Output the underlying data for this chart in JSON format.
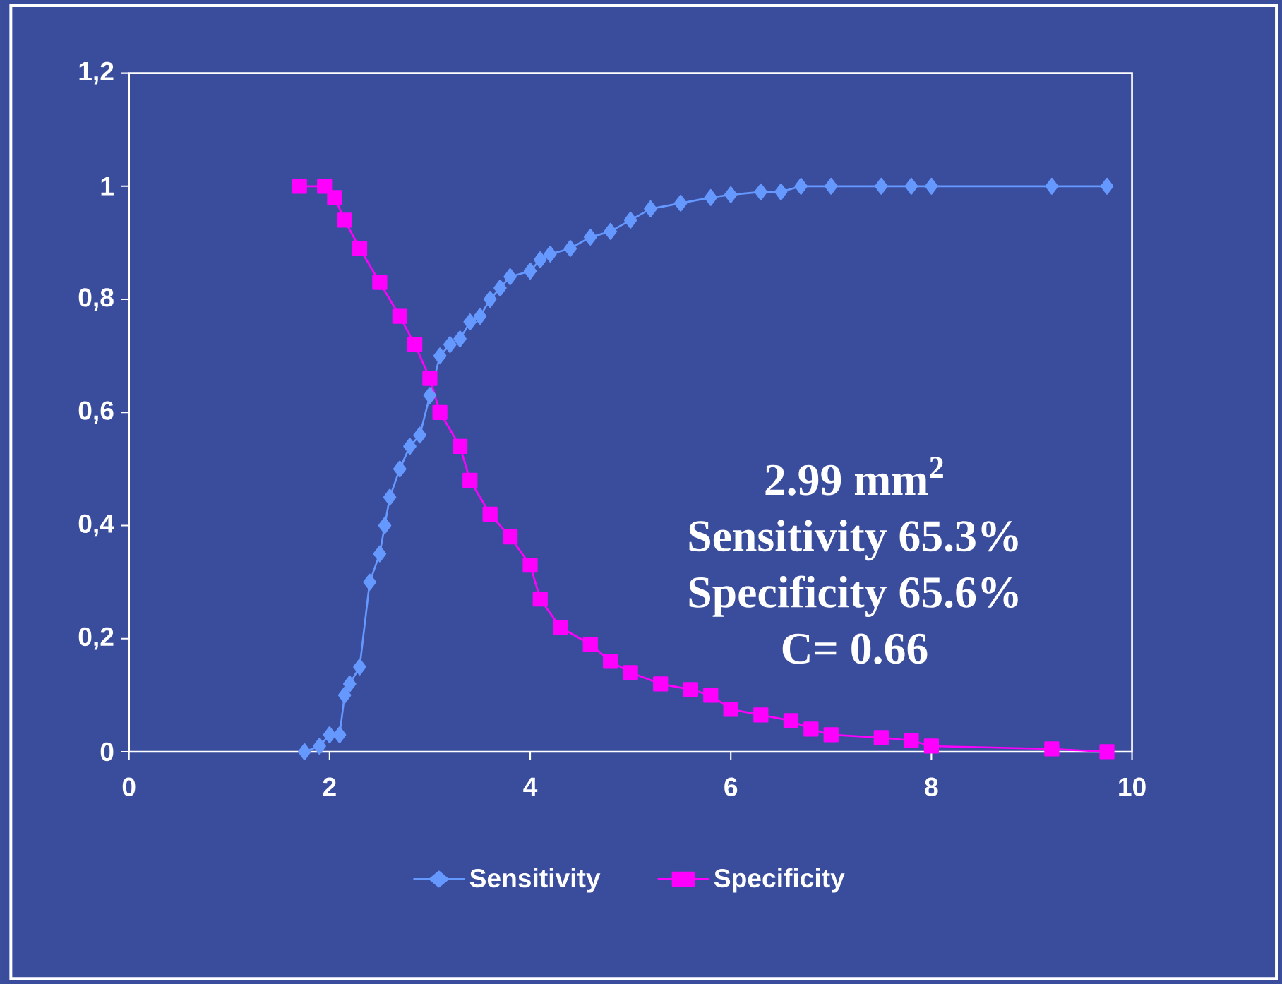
{
  "chart_data": {
    "type": "line",
    "xlim": [
      0,
      10
    ],
    "xticks": [
      0,
      2,
      4,
      6,
      8,
      10
    ],
    "ylim": [
      0,
      1.2
    ],
    "yticks": [
      {
        "value": 0,
        "label": "0"
      },
      {
        "value": 0.2,
        "label": "0,2"
      },
      {
        "value": 0.4,
        "label": "0,4"
      },
      {
        "value": 0.6,
        "label": "0,6"
      },
      {
        "value": 0.8,
        "label": "0,8"
      },
      {
        "value": 1,
        "label": "1"
      },
      {
        "value": 1.2,
        "label": "1,2"
      }
    ],
    "legend": "bottom",
    "grid": false,
    "annotations": [
      "2.99 mm$^{2}$",
      "Sensitivity 65.3%",
      "Specificity 65.6%",
      "C= 0.66"
    ],
    "series": [
      {
        "name": "Sensitivity",
        "color": "#6699ff",
        "marker": "diamond",
        "x": [
          1.75,
          1.9,
          2.0,
          2.1,
          2.15,
          2.2,
          2.3,
          2.4,
          2.5,
          2.55,
          2.6,
          2.7,
          2.8,
          2.9,
          3.0,
          3.1,
          3.2,
          3.3,
          3.4,
          3.5,
          3.6,
          3.7,
          3.8,
          4.0,
          4.1,
          4.2,
          4.4,
          4.6,
          4.8,
          5.0,
          5.2,
          5.5,
          5.8,
          6.0,
          6.3,
          6.5,
          6.7,
          7.0,
          7.5,
          7.8,
          8.0,
          9.2,
          9.75
        ],
        "values": [
          0,
          0.01,
          0.03,
          0.03,
          0.1,
          0.12,
          0.15,
          0.3,
          0.35,
          0.4,
          0.45,
          0.5,
          0.54,
          0.56,
          0.63,
          0.7,
          0.72,
          0.73,
          0.76,
          0.77,
          0.8,
          0.82,
          0.84,
          0.85,
          0.87,
          0.88,
          0.89,
          0.91,
          0.92,
          0.94,
          0.96,
          0.97,
          0.98,
          0.985,
          0.99,
          0.99,
          1,
          1,
          1,
          1,
          1,
          1,
          1
        ]
      },
      {
        "name": "Specificity",
        "color": "#ff00ff",
        "marker": "square",
        "x": [
          1.7,
          1.95,
          2.05,
          2.15,
          2.3,
          2.5,
          2.7,
          2.85,
          3.0,
          3.1,
          3.3,
          3.4,
          3.6,
          3.8,
          4.0,
          4.1,
          4.3,
          4.6,
          4.8,
          5.0,
          5.3,
          5.6,
          5.8,
          6.0,
          6.3,
          6.6,
          6.8,
          7.0,
          7.5,
          7.8,
          8.0,
          9.2,
          9.75
        ],
        "values": [
          1,
          1,
          0.98,
          0.94,
          0.89,
          0.83,
          0.77,
          0.72,
          0.66,
          0.6,
          0.54,
          0.48,
          0.42,
          0.38,
          0.33,
          0.27,
          0.22,
          0.19,
          0.16,
          0.14,
          0.12,
          0.11,
          0.1,
          0.075,
          0.065,
          0.055,
          0.04,
          0.03,
          0.025,
          0.02,
          0.01,
          0.005,
          0
        ]
      }
    ]
  }
}
